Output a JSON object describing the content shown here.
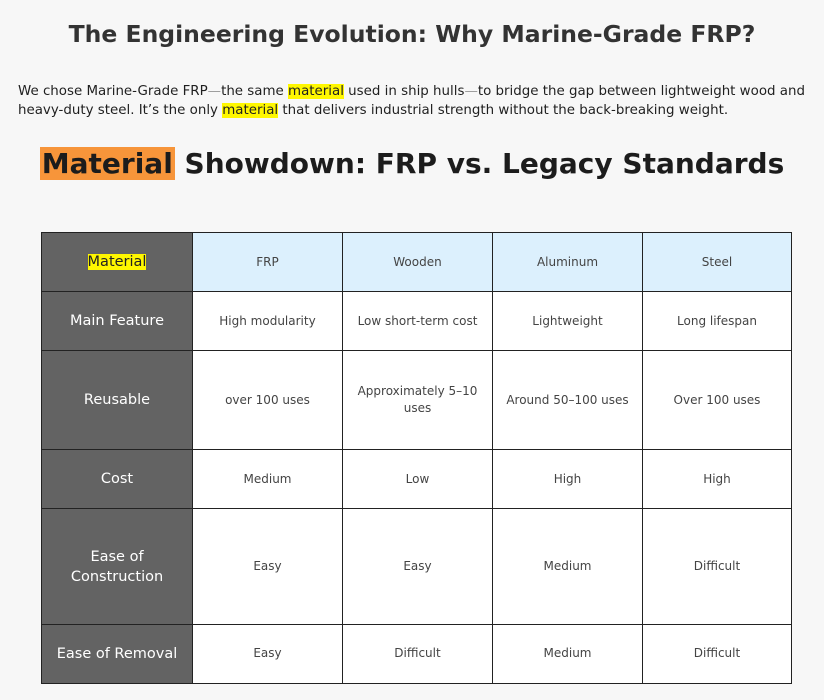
{
  "title": "The Engineering Evolution: Why Marine-Grade FRP?",
  "intro": {
    "part1": "We chose Marine-Grade FRP",
    "dash1": "—",
    "part2": "the same ",
    "hl1": "material",
    "part3": " used in ship hulls",
    "dash2": "—",
    "part4": "to bridge the gap between lightweight wood and heavy-duty steel. It’s the only ",
    "hl2": "material",
    "part5": " that delivers industrial strength without the back-breaking weight."
  },
  "showdown": {
    "highlight": "Material",
    "rest": " Showdown: FRP vs. Legacy Standards"
  },
  "table": {
    "corner": "Material",
    "columns": [
      "FRP",
      "Wooden",
      "Aluminum",
      "Steel"
    ],
    "rows": [
      {
        "label": "Main Feature",
        "cells": [
          "High modularity",
          "Low short-term cost",
          "Lightweight",
          "Long lifespan"
        ]
      },
      {
        "label": "Reusable",
        "cells": [
          "over 100 uses",
          "Approximately 5–10 uses",
          "Around 50–100 uses",
          "Over 100 uses"
        ]
      },
      {
        "label": "Cost",
        "cells": [
          "Medium",
          "Low",
          "High",
          "High"
        ]
      },
      {
        "label": "Ease of Construction",
        "cells": [
          "Easy",
          "Easy",
          "Medium",
          "Difficult"
        ]
      },
      {
        "label": "Ease of Removal",
        "cells": [
          "Easy",
          "Difficult",
          "Medium",
          "Difficult"
        ]
      }
    ]
  },
  "colors": {
    "row_header_bg": "#636363",
    "column_header_bg": "#dcf0fd",
    "highlight_yellow": "#fff700",
    "highlight_orange": "#f7953a"
  }
}
